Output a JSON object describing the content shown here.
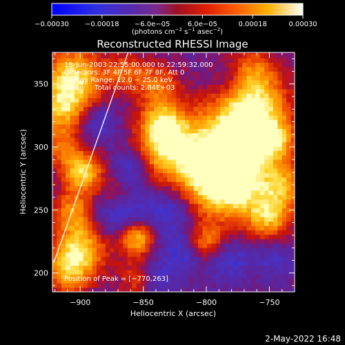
{
  "chart_data": {
    "type": "heatmap",
    "title": "Reconstructed RHESSI Image",
    "xlabel": "Heliocentric X (arcsec)",
    "ylabel": "Heliocentric Y (arcsec)",
    "xlim": [
      -922,
      -730
    ],
    "ylim": [
      185,
      375
    ],
    "x_ticks": [
      -900,
      -850,
      -800,
      -750
    ],
    "y_ticks": [
      200,
      250,
      300,
      350
    ],
    "x_tick_labels": [
      "−900",
      "−850",
      "−800",
      "−750"
    ],
    "y_tick_labels": [
      "200",
      "250",
      "300",
      "350"
    ],
    "colorbar": {
      "range": [
        -0.0003,
        0.0003
      ],
      "tick_values": [
        -0.0003,
        -0.00018,
        -6e-05,
        6e-05,
        0.00018,
        0.0003
      ],
      "tick_labels": [
        "−0.00030",
        "−0.00018",
        "−6.0e−05",
        "6.0e−05",
        "0.00018",
        "0.00030"
      ],
      "label_parts": [
        "(photons cm",
        "−2",
        " s",
        "−1",
        " asec",
        "−2",
        ")"
      ]
    },
    "annotations": [
      "18-Jun-2003 22:55:00.000 to 22:59:32.000",
      "Detectors: 3F 4F 5F 6F 7F 8F, Att 0",
      "Energy Range: 12.0 − 25.0 keV",
      "Clean     Total counts: 2.84E+03"
    ],
    "peak_label": "Position of Peak = [−770,263]",
    "peak": {
      "x": -770,
      "y": 263
    },
    "limb_line": [
      [
        -921,
        208
      ],
      [
        -862,
        375
      ]
    ],
    "hot_spots": [
      {
        "x": -780,
        "y": 272,
        "amp": 1.0,
        "r": 20
      },
      {
        "x": -805,
        "y": 290,
        "amp": 0.85,
        "r": 25
      },
      {
        "x": -770,
        "y": 312,
        "amp": 0.7,
        "r": 22
      },
      {
        "x": -760,
        "y": 333,
        "amp": 0.6,
        "r": 18
      },
      {
        "x": -835,
        "y": 320,
        "amp": 0.7,
        "r": 12
      },
      {
        "x": -835,
        "y": 300,
        "amp": 0.55,
        "r": 14
      },
      {
        "x": -840,
        "y": 350,
        "amp": 0.5,
        "r": 12
      },
      {
        "x": -905,
        "y": 355,
        "amp": 0.9,
        "r": 17
      },
      {
        "x": -915,
        "y": 330,
        "amp": 0.65,
        "r": 13
      },
      {
        "x": -898,
        "y": 280,
        "amp": 0.9,
        "r": 11
      },
      {
        "x": -915,
        "y": 300,
        "amp": 0.5,
        "r": 11
      },
      {
        "x": -905,
        "y": 250,
        "amp": 0.6,
        "r": 11
      },
      {
        "x": -900,
        "y": 220,
        "amp": 0.85,
        "r": 15
      },
      {
        "x": -910,
        "y": 200,
        "amp": 0.6,
        "r": 12
      },
      {
        "x": -855,
        "y": 228,
        "amp": 0.85,
        "r": 10
      },
      {
        "x": -800,
        "y": 225,
        "amp": 0.55,
        "r": 10
      },
      {
        "x": -750,
        "y": 245,
        "amp": 0.75,
        "r": 12
      },
      {
        "x": -738,
        "y": 270,
        "amp": 0.6,
        "r": 12
      },
      {
        "x": -745,
        "y": 305,
        "amp": 0.55,
        "r": 11
      },
      {
        "x": -765,
        "y": 360,
        "amp": 0.5,
        "r": 14
      },
      {
        "x": -872,
        "y": 262,
        "amp": 0.4,
        "r": 10
      },
      {
        "x": -865,
        "y": 360,
        "amp": 0.45,
        "r": 10
      },
      {
        "x": -855,
        "y": 195,
        "amp": 0.4,
        "r": 10
      }
    ],
    "cold_spots": [
      {
        "x": -870,
        "y": 250,
        "amp": 0.5,
        "r": 15
      },
      {
        "x": -830,
        "y": 250,
        "amp": 0.45,
        "r": 15
      },
      {
        "x": -860,
        "y": 285,
        "amp": 0.35,
        "r": 10
      },
      {
        "x": -820,
        "y": 215,
        "amp": 0.35,
        "r": 12
      },
      {
        "x": -780,
        "y": 210,
        "amp": 0.35,
        "r": 12
      },
      {
        "x": -840,
        "y": 195,
        "amp": 0.3,
        "r": 10
      },
      {
        "x": -780,
        "y": 355,
        "amp": 0.3,
        "r": 10
      },
      {
        "x": -885,
        "y": 320,
        "amp": 0.35,
        "r": 10
      },
      {
        "x": -745,
        "y": 210,
        "amp": 0.3,
        "r": 10
      }
    ]
  },
  "footer": {
    "date": "2-May-2022 16:48"
  }
}
